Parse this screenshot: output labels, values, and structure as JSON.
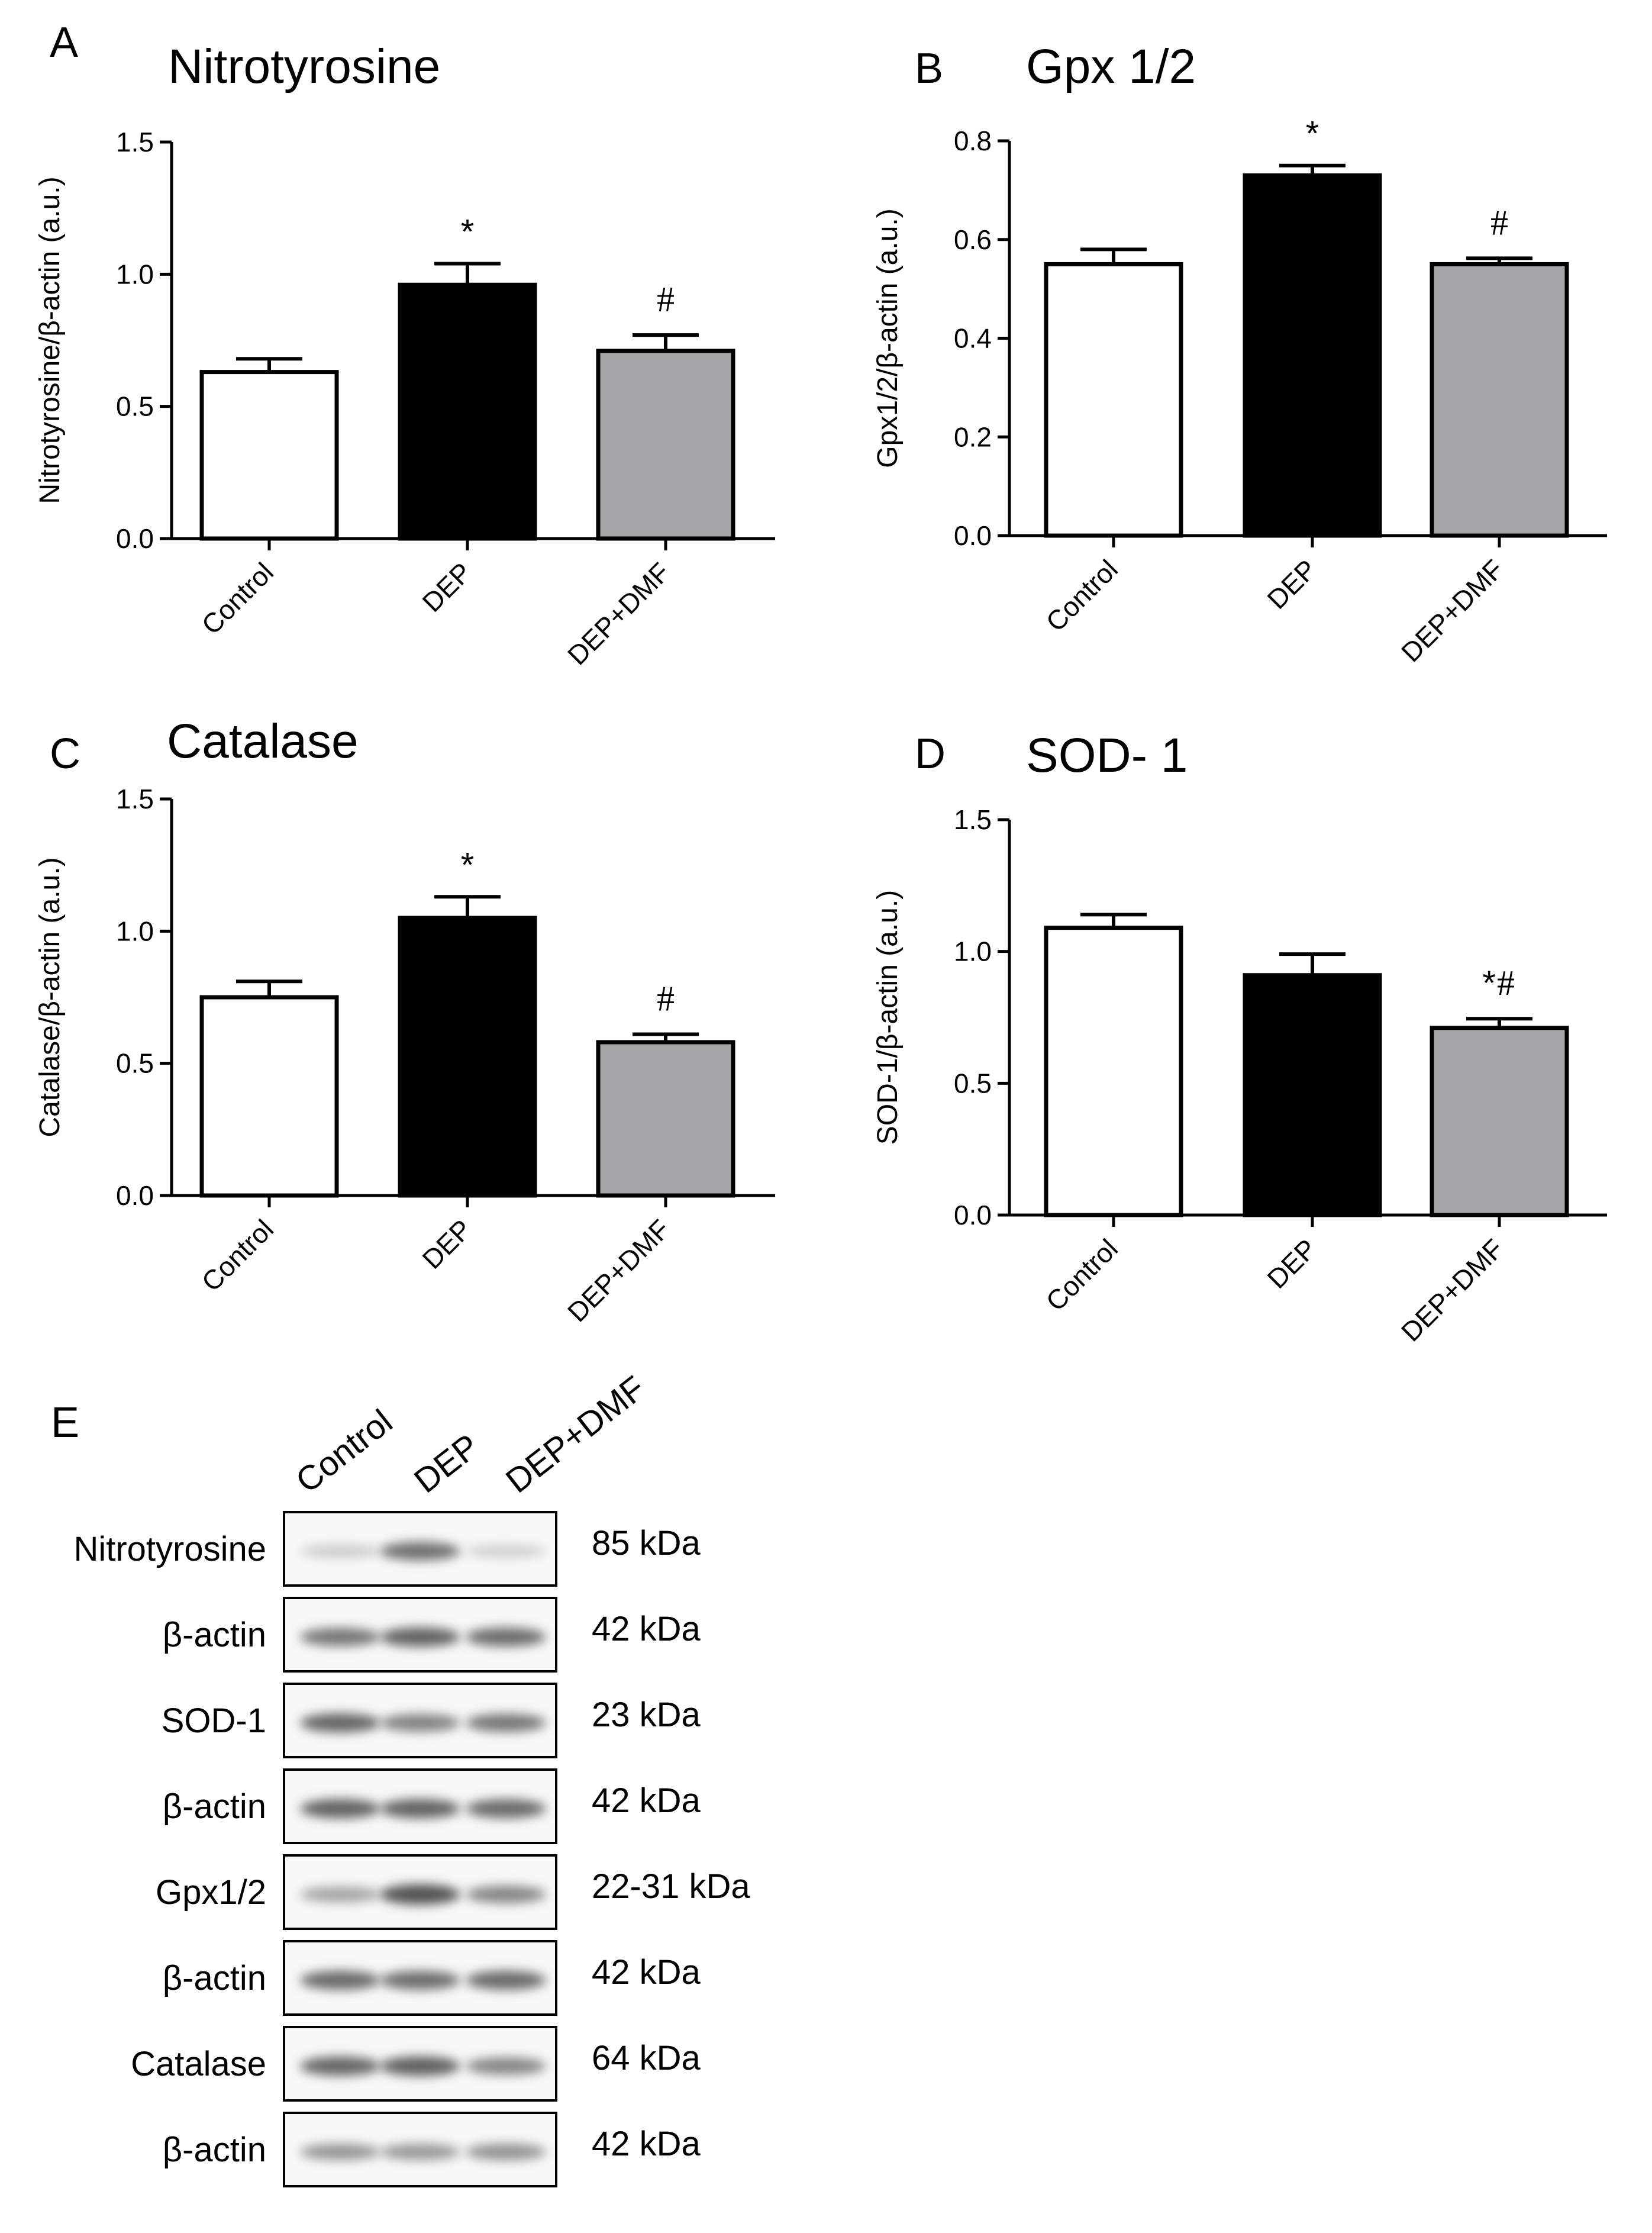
{
  "chart_data": [
    {
      "id": "A",
      "type": "bar",
      "panel_label": "A",
      "title": "Nitrotyrosine",
      "ylabel": "Nitrotyrosine/β-actin (a.u.)",
      "xlabel": "",
      "ylim": [
        0,
        1.5
      ],
      "ytick_values": [
        0,
        0.5,
        1.0,
        1.5
      ],
      "ytick_labels": [
        "0.0",
        "0.5",
        "1.0",
        "1.5"
      ],
      "categories": [
        "Control",
        "DEP",
        "DEP+DMF"
      ],
      "values": [
        0.63,
        0.96,
        0.71
      ],
      "errors": [
        0.05,
        0.08,
        0.06
      ],
      "fills": [
        "#ffffff",
        "#000000",
        "#a6a6a8"
      ],
      "significance": [
        {
          "star": "",
          "hash": ""
        },
        {
          "star": "*",
          "hash": ""
        },
        {
          "star": "",
          "hash": "#"
        }
      ]
    },
    {
      "id": "B",
      "type": "bar",
      "panel_label": "B",
      "title": "Gpx 1/2",
      "ylabel": "Gpx1/2/β-actin (a.u.)",
      "xlabel": "",
      "ylim": [
        0,
        0.8
      ],
      "ytick_values": [
        0,
        0.2,
        0.4,
        0.6,
        0.8
      ],
      "ytick_labels": [
        "0.0",
        "0.2",
        "0.4",
        "0.6",
        "0.8"
      ],
      "categories": [
        "Control",
        "DEP",
        "DEP+DMF"
      ],
      "values": [
        0.55,
        0.73,
        0.55
      ],
      "errors": [
        0.03,
        0.02,
        0.012
      ],
      "fills": [
        "#ffffff",
        "#000000",
        "#a6a6a8"
      ],
      "significance": [
        {
          "star": "",
          "hash": ""
        },
        {
          "star": "*",
          "hash": ""
        },
        {
          "star": "",
          "hash": "#"
        }
      ]
    },
    {
      "id": "C",
      "type": "bar",
      "panel_label": "C",
      "title": "Catalase",
      "ylabel": "Catalase/β-actin (a.u.)",
      "xlabel": "",
      "ylim": [
        0,
        1.5
      ],
      "ytick_values": [
        0,
        0.5,
        1.0,
        1.5
      ],
      "ytick_labels": [
        "0.0",
        "0.5",
        "1.0",
        "1.5"
      ],
      "categories": [
        "Control",
        "DEP",
        "DEP+DMF"
      ],
      "values": [
        0.75,
        1.05,
        0.58
      ],
      "errors": [
        0.06,
        0.08,
        0.03
      ],
      "fills": [
        "#ffffff",
        "#000000",
        "#a6a6a8"
      ],
      "significance": [
        {
          "star": "",
          "hash": ""
        },
        {
          "star": "*",
          "hash": ""
        },
        {
          "star": "",
          "hash": "#"
        }
      ]
    },
    {
      "id": "D",
      "type": "bar",
      "panel_label": "D",
      "title": "SOD- 1",
      "ylabel": "SOD-1/β-actin (a.u.)",
      "xlabel": "",
      "ylim": [
        0,
        1.5
      ],
      "ytick_values": [
        0,
        0.5,
        1.0,
        1.5
      ],
      "ytick_labels": [
        "0.0",
        "0.5",
        "1.0",
        "1.5"
      ],
      "categories": [
        "Control",
        "DEP",
        "DEP+DMF"
      ],
      "values": [
        1.09,
        0.91,
        0.71
      ],
      "errors": [
        0.05,
        0.08,
        0.035
      ],
      "fills": [
        "#ffffff",
        "#000000",
        "#a6a6a8"
      ],
      "significance": [
        {
          "star": "",
          "hash": ""
        },
        {
          "star": "",
          "hash": ""
        },
        {
          "star": "*",
          "hash": "#"
        }
      ]
    }
  ],
  "blot": {
    "panel_label": "E",
    "lanes": [
      "Control",
      "DEP",
      "DEP+DMF"
    ],
    "rows": [
      {
        "protein": "Nitrotyrosine",
        "kda": "85 kDa",
        "intensities": [
          0.18,
          0.72,
          0.16
        ]
      },
      {
        "protein": "β-actin",
        "kda": "42 kDa",
        "intensities": [
          0.68,
          0.8,
          0.74
        ]
      },
      {
        "protein": "SOD-1",
        "kda": "23 kDa",
        "intensities": [
          0.78,
          0.62,
          0.68
        ]
      },
      {
        "protein": "β-actin",
        "kda": "42 kDa",
        "intensities": [
          0.8,
          0.8,
          0.76
        ]
      },
      {
        "protein": "Gpx1/2",
        "kda": "22-31 kDa",
        "intensities": [
          0.42,
          0.9,
          0.6
        ]
      },
      {
        "protein": "β-actin",
        "kda": "42 kDa",
        "intensities": [
          0.76,
          0.74,
          0.76
        ]
      },
      {
        "protein": "Catalase",
        "kda": "64 kDa",
        "intensities": [
          0.78,
          0.82,
          0.6
        ]
      },
      {
        "protein": "β-actin",
        "kda": "42 kDa",
        "intensities": [
          0.5,
          0.48,
          0.52
        ]
      }
    ]
  }
}
